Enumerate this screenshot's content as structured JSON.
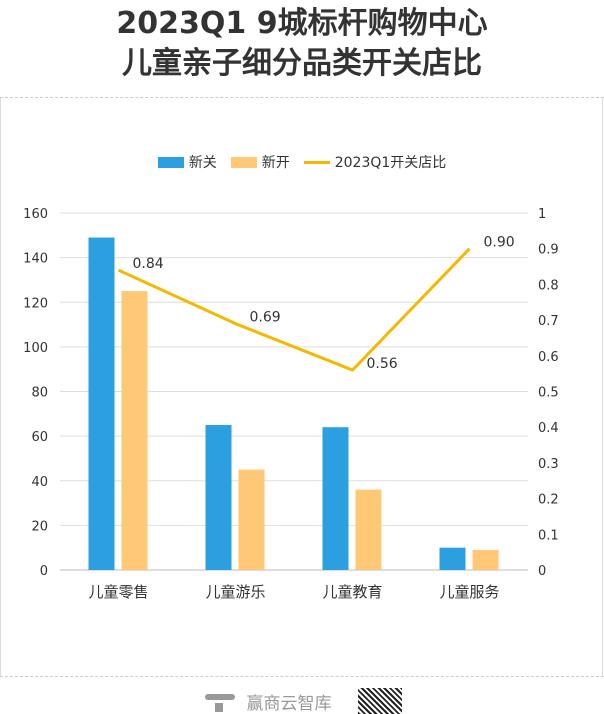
{
  "title_line1": "2023Q1  9城标杆购物中心",
  "title_line2": "儿童亲子细分品类开关店比",
  "footer": {
    "brand": "赢商云智库"
  },
  "colors": {
    "close": "#2B9FE0",
    "open": "#FFC876",
    "ratio": "#F5B800"
  },
  "chart_data": {
    "type": "bar",
    "categories": [
      "儿童零售",
      "儿童游乐",
      "儿童教育",
      "儿童服务"
    ],
    "series": [
      {
        "name": "新关",
        "type": "bar",
        "axis": "left",
        "values": [
          149,
          65,
          64,
          10
        ]
      },
      {
        "name": "新开",
        "type": "bar",
        "axis": "left",
        "values": [
          125,
          45,
          36,
          9
        ]
      },
      {
        "name": "2023Q1开关店比",
        "type": "line",
        "axis": "right",
        "values": [
          0.84,
          0.69,
          0.56,
          0.9
        ],
        "labels": [
          "0.84",
          "0.69",
          "0.56",
          "0.90"
        ]
      }
    ],
    "ylim": [
      0,
      160
    ],
    "yticks": [
      "0",
      "20",
      "40",
      "60",
      "80",
      "100",
      "120",
      "140",
      "160"
    ],
    "y2lim": [
      0,
      1
    ],
    "y2ticks": [
      "0",
      "0.1",
      "0.2",
      "0.3",
      "0.4",
      "0.5",
      "0.6",
      "0.7",
      "0.8",
      "0.9",
      "1"
    ],
    "grid": true,
    "legend": "top"
  }
}
